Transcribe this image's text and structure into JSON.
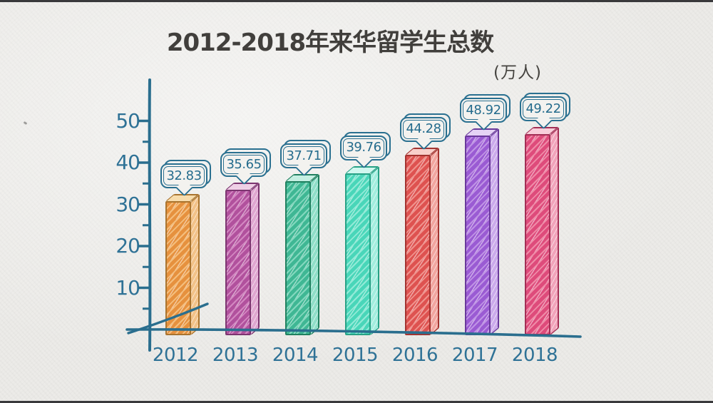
{
  "page": {
    "background_color": "#ECEBE8",
    "edge_strip_color": "#39393B",
    "style_note": "hand-drawn sketch style statistics chart on paper texture"
  },
  "chart_data": {
    "type": "bar",
    "title": "2012-2018年来华留学生总数",
    "unit_label": "(万人)",
    "xlabel": "",
    "ylabel": "",
    "categories": [
      "2012",
      "2013",
      "2014",
      "2015",
      "2016",
      "2017",
      "2018"
    ],
    "values": [
      32.83,
      35.65,
      37.71,
      39.76,
      44.28,
      48.92,
      49.22
    ],
    "value_labels": [
      "32.83",
      "35.65",
      "37.71",
      "39.76",
      "44.28",
      "48.92",
      "49.22"
    ],
    "yticks": [
      10,
      20,
      30,
      40,
      50
    ],
    "yticks_minor": [
      5,
      15,
      25,
      35,
      45
    ],
    "ylim": [
      0,
      55
    ],
    "grid": false,
    "legend_position": "none",
    "bar_style": "3d-prism-hatched",
    "callout_style": "speech-bubble above each bar",
    "axis_color": "#2A6E8E",
    "tick_label_color": "#2F7296",
    "title_color": "#413F3C",
    "callout": {
      "fill": "#F3F2EF",
      "stroke": "#2A7090",
      "text_color": "#256C8D"
    },
    "bar_palette": [
      {
        "name": "orange",
        "front": "#E6913E",
        "stripe": "#F4BE7D",
        "side": "#F2C288",
        "top": "#F7DCAC",
        "outline": "#A9742F"
      },
      {
        "name": "magenta",
        "front": "#B1519D",
        "stripe": "#D387C1",
        "side": "#DFA6D0",
        "top": "#EFD0E6",
        "outline": "#7C3570"
      },
      {
        "name": "green",
        "front": "#3FB794",
        "stripe": "#83D8BE",
        "side": "#8FDEC8",
        "top": "#C5EFE2",
        "outline": "#20805F"
      },
      {
        "name": "mint",
        "front": "#49D6B9",
        "stripe": "#92EAD7",
        "side": "#A2EDDE",
        "top": "#D0F7EF",
        "outline": "#27A185"
      },
      {
        "name": "red",
        "front": "#DE5250",
        "stripe": "#EF928C",
        "side": "#F1A59F",
        "top": "#F8CFCA",
        "outline": "#A33330"
      },
      {
        "name": "purple",
        "front": "#9A5BD3",
        "stripe": "#BF93E5",
        "side": "#CBAAEB",
        "top": "#E5D3F5",
        "outline": "#69399B"
      },
      {
        "name": "pink",
        "front": "#DE4B7B",
        "stripe": "#EF8BA7",
        "side": "#F1A3BA",
        "top": "#F8CEDA",
        "outline": "#A32F55"
      }
    ]
  }
}
